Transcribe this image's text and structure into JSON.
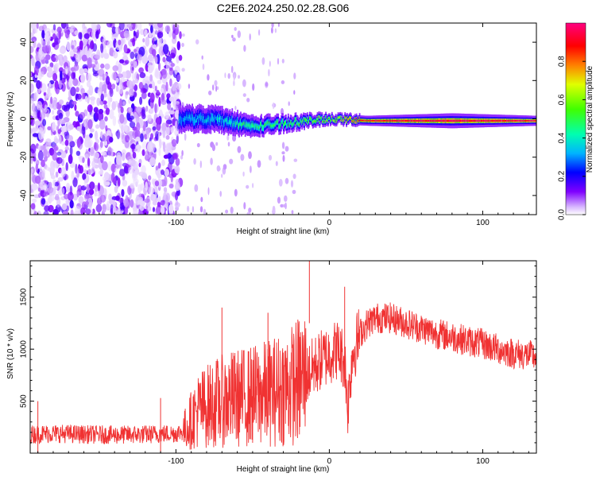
{
  "chart_data": [
    {
      "type": "heatmap",
      "title": "C2E6.2024.250.02.28.G06",
      "xlabel": "Height of straight line (km)",
      "ylabel": "Frequency (Hz)",
      "xlim": [
        -195,
        135
      ],
      "ylim": [
        -50,
        50
      ],
      "x_ticks": [
        -100,
        0,
        100
      ],
      "y_ticks": [
        -40,
        -20,
        0,
        20,
        40
      ],
      "y_tick_labels": [
        "-40",
        "-20",
        "0",
        "20",
        "40"
      ],
      "colorbar": {
        "label": "Normalized spectral amplitude",
        "range": [
          0,
          1
        ],
        "ticks": [
          0.0,
          0.2,
          0.4,
          0.6,
          0.8
        ],
        "tick_labels": [
          "0.0",
          "0.2",
          "0.4",
          "0.6",
          "0.8"
        ],
        "colors": [
          "#ffffff",
          "#c8a0ff",
          "#7f00ff",
          "#0000ff",
          "#00c0ff",
          "#00ff80",
          "#80ff00",
          "#ffff00",
          "#ff8000",
          "#ff0000",
          "#ff0080"
        ]
      },
      "description_points": [
        {
          "height_km": -195,
          "center_freq_hz": 0,
          "spread_hz": 50,
          "amplitude": 0.1
        },
        {
          "height_km": -98,
          "center_freq_hz": 0,
          "spread_hz": 5,
          "amplitude": 0.3
        },
        {
          "height_km": -75,
          "center_freq_hz": 0,
          "spread_hz": 5,
          "amplitude": 0.35
        },
        {
          "height_km": -50,
          "center_freq_hz": -4,
          "spread_hz": 4,
          "amplitude": 0.45
        },
        {
          "height_km": -25,
          "center_freq_hz": -2,
          "spread_hz": 3,
          "amplitude": 0.5
        },
        {
          "height_km": 0,
          "center_freq_hz": 0,
          "spread_hz": 2,
          "amplitude": 0.6
        },
        {
          "height_km": 25,
          "center_freq_hz": -1,
          "spread_hz": 2,
          "amplitude": 0.9
        },
        {
          "height_km": 80,
          "center_freq_hz": -1,
          "spread_hz": 3,
          "amplitude": 0.95
        },
        {
          "height_km": 135,
          "center_freq_hz": -1,
          "spread_hz": 2,
          "amplitude": 0.95
        }
      ]
    },
    {
      "type": "line",
      "title": "",
      "xlabel": "Height of straight line (km)",
      "ylabel": "SNR (10 * v/v)",
      "xlim": [
        -195,
        135
      ],
      "ylim": [
        0,
        1850
      ],
      "x_ticks": [
        -100,
        0,
        100
      ],
      "y_ticks": [
        500,
        1000,
        1500
      ],
      "color": "#f03232",
      "series": [
        {
          "name": "SNR",
          "x": [
            -195,
            -180,
            -160,
            -140,
            -120,
            -100,
            -95,
            -90,
            -85,
            -75,
            -65,
            -55,
            -45,
            -35,
            -25,
            -15,
            -10,
            -5,
            0,
            5,
            10,
            12,
            15,
            20,
            25,
            30,
            40,
            50,
            60,
            70,
            80,
            90,
            100,
            110,
            120,
            135
          ],
          "y": [
            180,
            190,
            180,
            175,
            180,
            190,
            210,
            320,
            420,
            480,
            520,
            540,
            560,
            600,
            650,
            750,
            830,
            900,
            950,
            1000,
            900,
            450,
            950,
            1150,
            1250,
            1300,
            1300,
            1250,
            1200,
            1150,
            1120,
            1080,
            1050,
            1000,
            960,
            930
          ]
        }
      ],
      "peaks": [
        {
          "x": -13,
          "y": 1850
        },
        {
          "x": 10,
          "y": 1600
        },
        {
          "x": -70,
          "y": 1400
        },
        {
          "x": -40,
          "y": 1350
        },
        {
          "x": -110,
          "y": 530
        },
        {
          "x": -190,
          "y": 500
        }
      ]
    }
  ]
}
